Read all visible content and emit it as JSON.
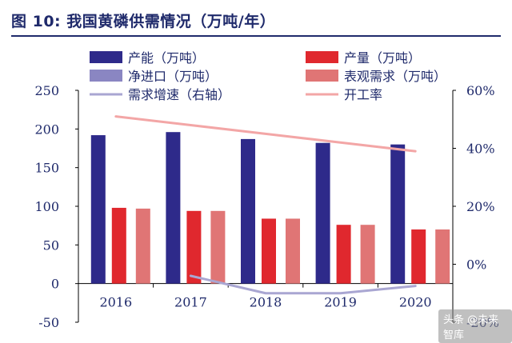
{
  "title": "图 10:  我国黄磷供需情况（万吨/年）",
  "watermark": "头条 @未来智库",
  "colors": {
    "capacity": "#2e2a8a",
    "production": "#e0282e",
    "net_import": "#8a86c2",
    "apparent_demand": "#e07575",
    "demand_growth": "#a9a6d2",
    "utilization": "#f3a6a6",
    "text": "#1f2a6b"
  },
  "chart_data": {
    "type": "bar",
    "categories": [
      "2016",
      "2017",
      "2018",
      "2019",
      "2020"
    ],
    "ylim": [
      -50,
      250
    ],
    "y_ticks": [
      -50,
      0,
      50,
      100,
      150,
      200,
      250
    ],
    "y2lim": [
      -20,
      60
    ],
    "y2_ticks": [
      -20,
      0,
      20,
      40,
      60
    ],
    "y2_tick_labels": [
      "-20%",
      "0%",
      "20%",
      "40%",
      "60%"
    ],
    "legend_position": "top",
    "series": [
      {
        "name": "产能（万吨）",
        "kind": "bar",
        "axis": "left",
        "color_key": "capacity",
        "values": [
          192,
          196,
          187,
          182,
          180
        ]
      },
      {
        "name": "产量（万吨）",
        "kind": "bar",
        "axis": "left",
        "color_key": "production",
        "values": [
          98,
          94,
          84,
          76,
          70
        ]
      },
      {
        "name": "净进口（万吨）",
        "kind": "bar",
        "axis": "left",
        "color_key": "net_import",
        "values": [
          0,
          0,
          0,
          0,
          0
        ]
      },
      {
        "name": "表观需求（万吨）",
        "kind": "bar",
        "axis": "left",
        "color_key": "apparent_demand",
        "values": [
          97,
          94,
          84,
          76,
          70
        ]
      },
      {
        "name": "需求增速（右轴）",
        "kind": "line",
        "axis": "right",
        "color_key": "demand_growth",
        "values": [
          null,
          -4,
          -10,
          -10,
          -7.5
        ]
      },
      {
        "name": "开工率",
        "kind": "line",
        "axis": "right",
        "color_key": "utilization",
        "values": [
          51,
          48,
          45,
          42,
          39
        ]
      }
    ]
  }
}
